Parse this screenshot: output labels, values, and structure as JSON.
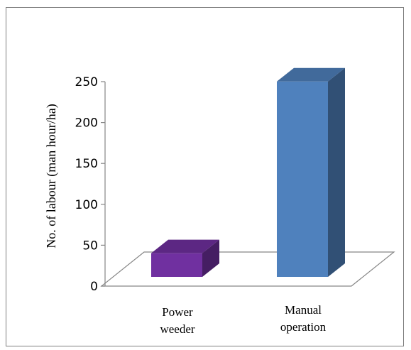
{
  "chart_data": {
    "type": "bar",
    "style": "3d-column",
    "title": "",
    "xlabel": "",
    "ylabel": "No. of labour (man hour/ha)",
    "ylim": [
      0,
      250
    ],
    "yticks": [
      "0",
      "50",
      "100",
      "150",
      "200",
      "250"
    ],
    "grid": false,
    "legend": "none",
    "categories": [
      {
        "lines": [
          "Power",
          "weeder"
        ]
      },
      {
        "lines": [
          "Manual",
          "operation"
        ]
      }
    ],
    "values": [
      35,
      245
    ],
    "colors": [
      "#7030A0",
      "#4F81BD"
    ]
  }
}
